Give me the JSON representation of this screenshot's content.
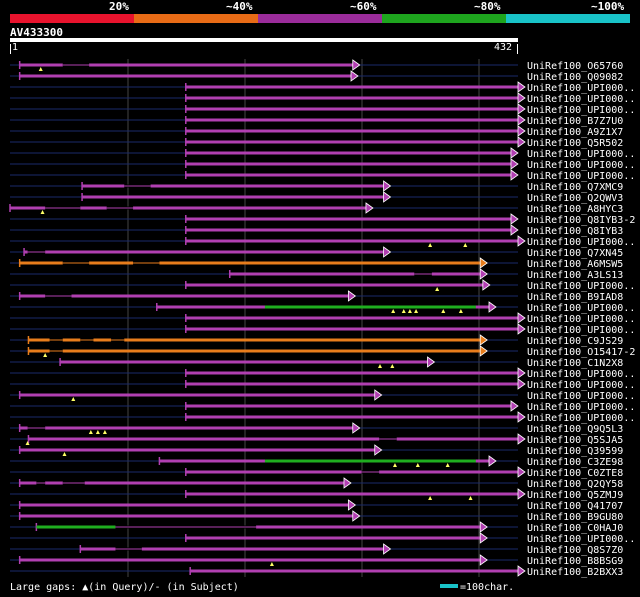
{
  "legend": {
    "segments": [
      {
        "label": "20%",
        "color": "#e8132d"
      },
      {
        "label": "~40%",
        "color": "#e86b16"
      },
      {
        "label": "~60%",
        "color": "#9b2c9b"
      },
      {
        "label": "~80%",
        "color": "#1ea51e"
      },
      {
        "label": "~100%",
        "color": "#19c3c8"
      }
    ]
  },
  "query": {
    "name": "AV433300",
    "start": "1",
    "end": "432"
  },
  "colors": {
    "purple": "#b13fb1",
    "orange": "#e87d1c",
    "green": "#1fae1f",
    "guide": "#1a2a6a",
    "grid": "#444444"
  },
  "hits": [
    {
      "label": "UniRef100_O65760",
      "s": 11,
      "e": 390,
      "c": "purple",
      "gaps": [
        [
          60,
          90
        ]
      ],
      "t": [
        35
      ]
    },
    {
      "label": "UniRef100_Q09082",
      "s": 11,
      "e": 388,
      "c": "purple",
      "t": []
    },
    {
      "label": "UniRef100_UPI000..",
      "s": 200,
      "e": 578,
      "c": "purple",
      "t": []
    },
    {
      "label": "UniRef100_UPI000..",
      "s": 200,
      "e": 578,
      "c": "purple",
      "t": []
    },
    {
      "label": "UniRef100_UPI000..",
      "s": 200,
      "e": 578,
      "c": "purple",
      "t": []
    },
    {
      "label": "UniRef100_B7Z7U0",
      "s": 200,
      "e": 578,
      "c": "purple",
      "t": []
    },
    {
      "label": "UniRef100_A9Z1X7",
      "s": 200,
      "e": 578,
      "c": "purple",
      "t": []
    },
    {
      "label": "UniRef100_Q5R502",
      "s": 200,
      "e": 578,
      "c": "purple",
      "t": []
    },
    {
      "label": "UniRef100_UPI000..",
      "s": 200,
      "e": 570,
      "c": "purple",
      "t": []
    },
    {
      "label": "UniRef100_UPI000..",
      "s": 200,
      "e": 570,
      "c": "purple",
      "t": []
    },
    {
      "label": "UniRef100_UPI000..",
      "s": 200,
      "e": 570,
      "c": "purple",
      "t": []
    },
    {
      "label": "UniRef100_Q7XMC9",
      "s": 82,
      "e": 425,
      "c": "purple",
      "gaps": [
        [
          130,
          160
        ]
      ],
      "t": []
    },
    {
      "label": "UniRef100_Q2QWV3",
      "s": 82,
      "e": 425,
      "c": "purple",
      "t": []
    },
    {
      "label": "UniRef100_A8HYC3",
      "s": 0,
      "e": 405,
      "c": "purple",
      "gaps": [
        [
          40,
          80
        ],
        [
          110,
          140
        ]
      ],
      "t": [
        37
      ]
    },
    {
      "label": "UniRef100_Q8IYB3-2",
      "s": 200,
      "e": 570,
      "c": "purple",
      "t": []
    },
    {
      "label": "UniRef100_Q8IYB3",
      "s": 200,
      "e": 570,
      "c": "purple",
      "t": []
    },
    {
      "label": "UniRef100_UPI000..",
      "s": 200,
      "e": 578,
      "c": "purple",
      "t": [
        478,
        518
      ]
    },
    {
      "label": "UniRef100_Q7XN45",
      "s": 16,
      "e": 425,
      "c": "purple",
      "gaps": [
        [
          20,
          40
        ]
      ],
      "t": []
    },
    {
      "label": "UniRef100_A6MSW5",
      "s": 11,
      "e": 535,
      "c": "orange",
      "gaps": [
        [
          60,
          90
        ],
        [
          140,
          170
        ]
      ],
      "t": []
    },
    {
      "label": "UniRef100_A3LS13",
      "s": 250,
      "e": 535,
      "c": "purple",
      "gaps": [
        [
          460,
          480
        ]
      ],
      "t": []
    },
    {
      "label": "UniRef100_UPI000..",
      "s": 200,
      "e": 538,
      "c": "purple",
      "t": [
        486
      ]
    },
    {
      "label": "UniRef100_B9IAD8",
      "s": 11,
      "e": 385,
      "c": "purple",
      "gaps": [
        [
          40,
          70
        ]
      ],
      "t": []
    },
    {
      "label": "UniRef100_UPI000..",
      "s": 167,
      "e": 545,
      "c": "purple",
      "green": [
        290,
        530
      ],
      "t": [
        436,
        448,
        455,
        462,
        493,
        513
      ]
    },
    {
      "label": "UniRef100_UPI000..",
      "s": 200,
      "e": 578,
      "c": "purple",
      "t": []
    },
    {
      "label": "UniRef100_UPI000..",
      "s": 200,
      "e": 578,
      "c": "purple",
      "t": []
    },
    {
      "label": "UniRef100_C9JS29",
      "s": 21,
      "e": 535,
      "c": "orange",
      "gaps": [
        [
          45,
          60
        ],
        [
          80,
          95
        ],
        [
          115,
          130
        ]
      ],
      "t": []
    },
    {
      "label": "UniRef100_O15417-2",
      "s": 21,
      "e": 535,
      "c": "orange",
      "gaps": [
        [
          45,
          60
        ]
      ],
      "t": [
        40
      ]
    },
    {
      "label": "UniRef100_C1N2X8",
      "s": 57,
      "e": 475,
      "c": "purple",
      "t": [
        421,
        435
      ]
    },
    {
      "label": "UniRef100_UPI000..",
      "s": 200,
      "e": 578,
      "c": "purple",
      "t": []
    },
    {
      "label": "UniRef100_UPI000..",
      "s": 200,
      "e": 578,
      "c": "purple",
      "t": []
    },
    {
      "label": "UniRef100_UPI000..",
      "s": 11,
      "e": 415,
      "c": "purple",
      "t": [
        72
      ]
    },
    {
      "label": "UniRef100_UPI000..",
      "s": 200,
      "e": 570,
      "c": "purple",
      "t": []
    },
    {
      "label": "UniRef100_UPI000..",
      "s": 200,
      "e": 578,
      "c": "purple",
      "t": []
    },
    {
      "label": "UniRef100_Q9Q5L3",
      "s": 11,
      "e": 390,
      "c": "purple",
      "gaps": [
        [
          20,
          40
        ]
      ],
      "t": [
        92,
        100,
        108
      ]
    },
    {
      "label": "UniRef100_Q5SJA5",
      "s": 21,
      "e": 578,
      "c": "purple",
      "gaps": [
        [
          420,
          440
        ]
      ],
      "t": [
        20
      ]
    },
    {
      "label": "UniRef100_Q39599",
      "s": 11,
      "e": 415,
      "c": "purple",
      "t": [
        62
      ]
    },
    {
      "label": "UniRef100_C3ZE98",
      "s": 170,
      "e": 545,
      "c": "purple",
      "green": [
        290,
        530
      ],
      "t": [
        438,
        464,
        498
      ]
    },
    {
      "label": "UniRef100_C0ZTE8",
      "s": 200,
      "e": 578,
      "c": "purple",
      "gaps": [
        [
          400,
          420
        ]
      ],
      "t": []
    },
    {
      "label": "UniRef100_Q2QY58",
      "s": 11,
      "e": 380,
      "c": "purple",
      "gaps": [
        [
          30,
          40
        ],
        [
          60,
          85
        ]
      ],
      "t": []
    },
    {
      "label": "UniRef100_Q5ZMJ9",
      "s": 200,
      "e": 578,
      "c": "purple",
      "t": [
        478,
        524
      ]
    },
    {
      "label": "UniRef100_Q41707",
      "s": 11,
      "e": 385,
      "c": "purple",
      "t": []
    },
    {
      "label": "UniRef100_B9GU80",
      "s": 11,
      "e": 390,
      "c": "purple",
      "t": []
    },
    {
      "label": "UniRef100_C0HAJ0",
      "s": 30,
      "e": 535,
      "c": "purple",
      "green": [
        30,
        120
      ],
      "gaps": [
        [
          120,
          280
        ]
      ],
      "t": []
    },
    {
      "label": "UniRef100_UPI000..",
      "s": 200,
      "e": 535,
      "c": "purple",
      "t": []
    },
    {
      "label": "UniRef100_Q8S7Z0",
      "s": 80,
      "e": 425,
      "c": "purple",
      "gaps": [
        [
          120,
          150
        ]
      ],
      "t": []
    },
    {
      "label": "UniRef100_B8BSG9",
      "s": 11,
      "e": 535,
      "c": "purple",
      "t": [
        298
      ]
    },
    {
      "label": "UniRef100_B2BXX3",
      "s": 205,
      "e": 578,
      "c": "purple",
      "t": []
    }
  ],
  "footer": {
    "gaps_text": "Large gaps: ▲(in Query)/- (in Subject)",
    "scale_text": "=100char."
  }
}
